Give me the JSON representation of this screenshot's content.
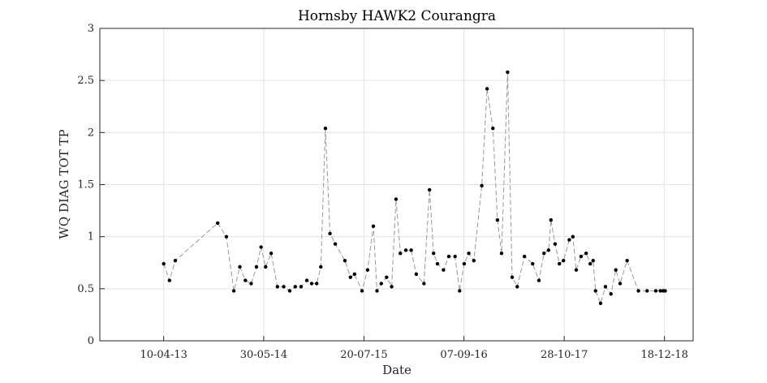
{
  "chart_data": {
    "type": "line",
    "title": "Hornsby HAWK2 Courangra",
    "xlabel": "Date",
    "ylabel": "WQ DIAG TOT TP",
    "ylim": [
      0,
      3
    ],
    "yticks": [
      "0",
      "0.5",
      "1",
      "1.5",
      "2",
      "2.5",
      "3"
    ],
    "xlim": [
      "2012-07-19",
      "2019-04-16"
    ],
    "xticks": [
      {
        "date": "2013-04-10",
        "label": "10-04-13"
      },
      {
        "date": "2014-05-30",
        "label": "30-05-14"
      },
      {
        "date": "2015-07-20",
        "label": "20-07-15"
      },
      {
        "date": "2016-09-07",
        "label": "07-09-16"
      },
      {
        "date": "2017-10-28",
        "label": "28-10-17"
      },
      {
        "date": "2018-12-18",
        "label": "18-12-18"
      }
    ],
    "grid": true,
    "line_color": "#999999",
    "marker_color": "#000000",
    "series": [
      {
        "x": [
          "2013-04-10",
          "2013-05-04",
          "2013-05-28",
          "2013-11-20",
          "2013-12-26",
          "2014-01-26",
          "2014-02-20",
          "2014-03-15",
          "2014-04-08",
          "2014-04-30",
          "2014-05-19",
          "2014-06-07",
          "2014-06-30",
          "2014-07-26",
          "2014-08-21",
          "2014-09-15",
          "2014-10-08",
          "2014-11-01",
          "2014-11-25",
          "2014-12-15",
          "2015-01-05",
          "2015-01-22",
          "2015-02-10",
          "2015-03-01",
          "2015-03-23",
          "2015-05-02",
          "2015-05-25",
          "2015-06-11",
          "2015-07-12",
          "2015-08-04",
          "2015-08-28",
          "2015-09-12",
          "2015-09-30",
          "2015-10-22",
          "2015-11-12",
          "2015-11-30",
          "2015-12-18",
          "2016-01-10",
          "2016-02-01",
          "2016-02-22",
          "2016-03-25",
          "2016-04-17",
          "2016-05-04",
          "2016-05-20",
          "2016-06-14",
          "2016-07-06",
          "2016-08-01",
          "2016-08-20",
          "2016-09-08",
          "2016-09-27",
          "2016-10-18",
          "2016-11-20",
          "2016-12-12",
          "2017-01-05",
          "2017-01-24",
          "2017-02-10",
          "2017-03-07",
          "2017-03-26",
          "2017-04-16",
          "2017-05-16",
          "2017-06-19",
          "2017-07-15",
          "2017-08-05",
          "2017-08-24",
          "2017-09-03",
          "2017-09-20",
          "2017-10-08",
          "2017-10-25",
          "2017-11-18",
          "2017-12-03",
          "2017-12-17",
          "2018-01-06",
          "2018-01-27",
          "2018-02-13",
          "2018-02-25",
          "2018-03-07",
          "2018-03-28",
          "2018-04-17",
          "2018-05-10",
          "2018-05-30",
          "2018-06-17",
          "2018-07-16",
          "2018-09-01",
          "2018-10-07",
          "2018-11-12",
          "2018-12-01",
          "2018-12-12",
          "2018-12-21"
        ],
        "y": [
          0.74,
          0.58,
          0.77,
          1.13,
          1.0,
          0.48,
          0.71,
          0.58,
          0.55,
          0.71,
          0.9,
          0.71,
          0.84,
          0.52,
          0.52,
          0.48,
          0.52,
          0.52,
          0.58,
          0.55,
          0.55,
          0.71,
          2.04,
          1.03,
          0.93,
          0.77,
          0.61,
          0.64,
          0.48,
          0.68,
          1.1,
          0.48,
          0.55,
          0.61,
          0.52,
          1.36,
          0.84,
          0.87,
          0.87,
          0.64,
          0.55,
          1.45,
          0.84,
          0.74,
          0.68,
          0.81,
          0.81,
          0.48,
          0.74,
          0.84,
          0.77,
          1.49,
          2.42,
          2.04,
          1.16,
          0.84,
          2.58,
          0.61,
          0.52,
          0.81,
          0.74,
          0.58,
          0.84,
          0.87,
          1.16,
          0.93,
          0.74,
          0.77,
          0.97,
          1.0,
          0.68,
          0.81,
          0.84,
          0.74,
          0.77,
          0.48,
          0.36,
          0.52,
          0.45,
          0.68,
          0.55,
          0.77,
          0.48,
          0.48,
          0.48,
          0.48,
          0.48,
          0.48
        ]
      }
    ]
  }
}
